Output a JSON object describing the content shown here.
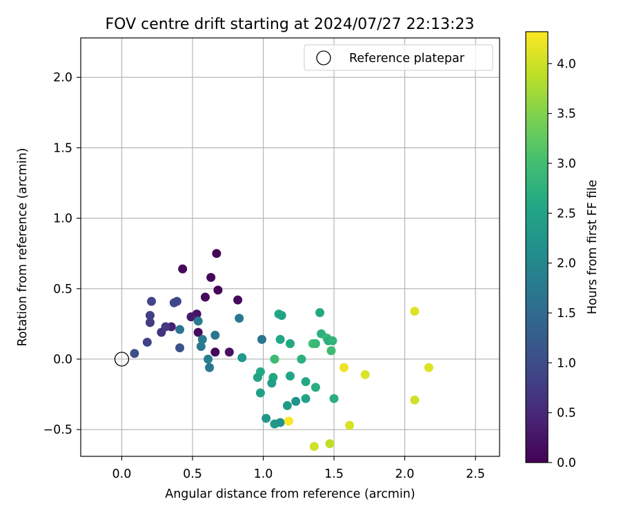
{
  "chart_data": {
    "type": "scatter",
    "title": "FOV centre drift starting at 2024/07/27 22:13:23",
    "xlabel": "Angular distance from reference (arcmin)",
    "ylabel": "Rotation from reference (arcmin)",
    "xlim": [
      -0.29,
      2.67
    ],
    "ylim": [
      -0.69,
      2.28
    ],
    "xticks": [
      0.0,
      0.5,
      1.0,
      1.5,
      2.0,
      2.5
    ],
    "xtick_labels": [
      "0.0",
      "0.5",
      "1.0",
      "1.5",
      "2.0",
      "2.5"
    ],
    "yticks": [
      -0.5,
      0.0,
      0.5,
      1.0,
      1.5,
      2.0
    ],
    "ytick_labels": [
      "−0.5",
      "0.0",
      "0.5",
      "1.0",
      "1.5",
      "2.0"
    ],
    "grid": true,
    "colormap": "viridis",
    "colorbar": {
      "label": "Hours from first FF file",
      "range": [
        0.0,
        4.32
      ],
      "ticks": [
        0.0,
        0.5,
        1.0,
        1.5,
        2.0,
        2.5,
        3.0,
        3.5,
        4.0
      ],
      "tick_labels": [
        "0.0",
        "0.5",
        "1.0",
        "1.5",
        "2.0",
        "2.5",
        "3.0",
        "3.5",
        "4.0"
      ]
    },
    "reference": {
      "x": 0.0,
      "y": 0.0,
      "label": "Reference platepar"
    },
    "legend": {
      "position": "top-right",
      "entries": [
        "Reference platepar"
      ]
    },
    "points": [
      {
        "x": 0.67,
        "y": 0.75,
        "c": 0.05
      },
      {
        "x": 0.43,
        "y": 0.64,
        "c": 0.1
      },
      {
        "x": 0.63,
        "y": 0.58,
        "c": 0.08
      },
      {
        "x": 0.68,
        "y": 0.49,
        "c": 0.05
      },
      {
        "x": 0.59,
        "y": 0.44,
        "c": 0.12
      },
      {
        "x": 0.82,
        "y": 0.42,
        "c": 0.1
      },
      {
        "x": 0.53,
        "y": 0.32,
        "c": 0.22
      },
      {
        "x": 0.49,
        "y": 0.3,
        "c": 0.3
      },
      {
        "x": 0.35,
        "y": 0.23,
        "c": 0.4
      },
      {
        "x": 0.54,
        "y": 0.19,
        "c": 0.15
      },
      {
        "x": 0.66,
        "y": 0.05,
        "c": 0.1
      },
      {
        "x": 0.76,
        "y": 0.05,
        "c": 0.2
      },
      {
        "x": 0.21,
        "y": 0.41,
        "c": 0.9
      },
      {
        "x": 0.39,
        "y": 0.41,
        "c": 0.95
      },
      {
        "x": 0.37,
        "y": 0.4,
        "c": 0.9
      },
      {
        "x": 0.2,
        "y": 0.31,
        "c": 0.8
      },
      {
        "x": 0.2,
        "y": 0.26,
        "c": 0.75
      },
      {
        "x": 0.31,
        "y": 0.23,
        "c": 0.7
      },
      {
        "x": 0.28,
        "y": 0.19,
        "c": 0.65
      },
      {
        "x": 0.18,
        "y": 0.12,
        "c": 0.85
      },
      {
        "x": 0.09,
        "y": 0.04,
        "c": 1.05
      },
      {
        "x": 0.41,
        "y": 0.08,
        "c": 1.1
      },
      {
        "x": 0.41,
        "y": 0.21,
        "c": 1.7
      },
      {
        "x": 0.54,
        "y": 0.27,
        "c": 1.75
      },
      {
        "x": 0.57,
        "y": 0.14,
        "c": 1.8
      },
      {
        "x": 0.56,
        "y": 0.09,
        "c": 1.75
      },
      {
        "x": 0.66,
        "y": 0.17,
        "c": 1.7
      },
      {
        "x": 0.61,
        "y": 0.0,
        "c": 1.85
      },
      {
        "x": 0.62,
        "y": -0.06,
        "c": 1.7
      },
      {
        "x": 0.83,
        "y": 0.29,
        "c": 1.75
      },
      {
        "x": 0.85,
        "y": 0.01,
        "c": 2.3
      },
      {
        "x": 0.99,
        "y": 0.14,
        "c": 1.65
      },
      {
        "x": 1.11,
        "y": 0.32,
        "c": 2.55
      },
      {
        "x": 1.13,
        "y": 0.31,
        "c": 2.5
      },
      {
        "x": 1.12,
        "y": 0.14,
        "c": 2.55
      },
      {
        "x": 1.19,
        "y": 0.11,
        "c": 2.6
      },
      {
        "x": 1.08,
        "y": 0.0,
        "c": 2.95
      },
      {
        "x": 0.98,
        "y": -0.09,
        "c": 2.6
      },
      {
        "x": 0.96,
        "y": -0.13,
        "c": 2.5
      },
      {
        "x": 1.07,
        "y": -0.13,
        "c": 2.6
      },
      {
        "x": 1.06,
        "y": -0.17,
        "c": 2.4
      },
      {
        "x": 1.19,
        "y": -0.12,
        "c": 2.55
      },
      {
        "x": 0.98,
        "y": -0.24,
        "c": 2.45
      },
      {
        "x": 1.02,
        "y": -0.42,
        "c": 2.3
      },
      {
        "x": 1.08,
        "y": -0.46,
        "c": 2.35
      },
      {
        "x": 1.12,
        "y": -0.45,
        "c": 2.2
      },
      {
        "x": 1.17,
        "y": -0.33,
        "c": 2.35
      },
      {
        "x": 1.23,
        "y": -0.3,
        "c": 2.2
      },
      {
        "x": 1.27,
        "y": 0.0,
        "c": 2.75
      },
      {
        "x": 1.3,
        "y": -0.16,
        "c": 2.6
      },
      {
        "x": 1.3,
        "y": -0.28,
        "c": 2.5
      },
      {
        "x": 1.37,
        "y": -0.2,
        "c": 2.7
      },
      {
        "x": 1.35,
        "y": 0.11,
        "c": 3.0
      },
      {
        "x": 1.37,
        "y": 0.11,
        "c": 2.9
      },
      {
        "x": 1.4,
        "y": 0.33,
        "c": 2.6
      },
      {
        "x": 1.41,
        "y": 0.18,
        "c": 2.75
      },
      {
        "x": 1.45,
        "y": 0.15,
        "c": 2.9
      },
      {
        "x": 1.46,
        "y": 0.13,
        "c": 2.7
      },
      {
        "x": 1.49,
        "y": 0.13,
        "c": 2.8
      },
      {
        "x": 1.48,
        "y": 0.06,
        "c": 2.95
      },
      {
        "x": 1.5,
        "y": -0.28,
        "c": 2.7
      },
      {
        "x": 1.18,
        "y": -0.44,
        "c": 4.3
      },
      {
        "x": 1.36,
        "y": -0.62,
        "c": 4.0
      },
      {
        "x": 1.47,
        "y": -0.6,
        "c": 3.9
      },
      {
        "x": 1.57,
        "y": -0.06,
        "c": 4.2
      },
      {
        "x": 1.61,
        "y": -0.47,
        "c": 4.05
      },
      {
        "x": 1.72,
        "y": -0.11,
        "c": 4.1
      },
      {
        "x": 2.07,
        "y": 0.34,
        "c": 4.1
      },
      {
        "x": 2.07,
        "y": -0.29,
        "c": 4.0
      },
      {
        "x": 2.17,
        "y": -0.06,
        "c": 4.1
      }
    ]
  }
}
